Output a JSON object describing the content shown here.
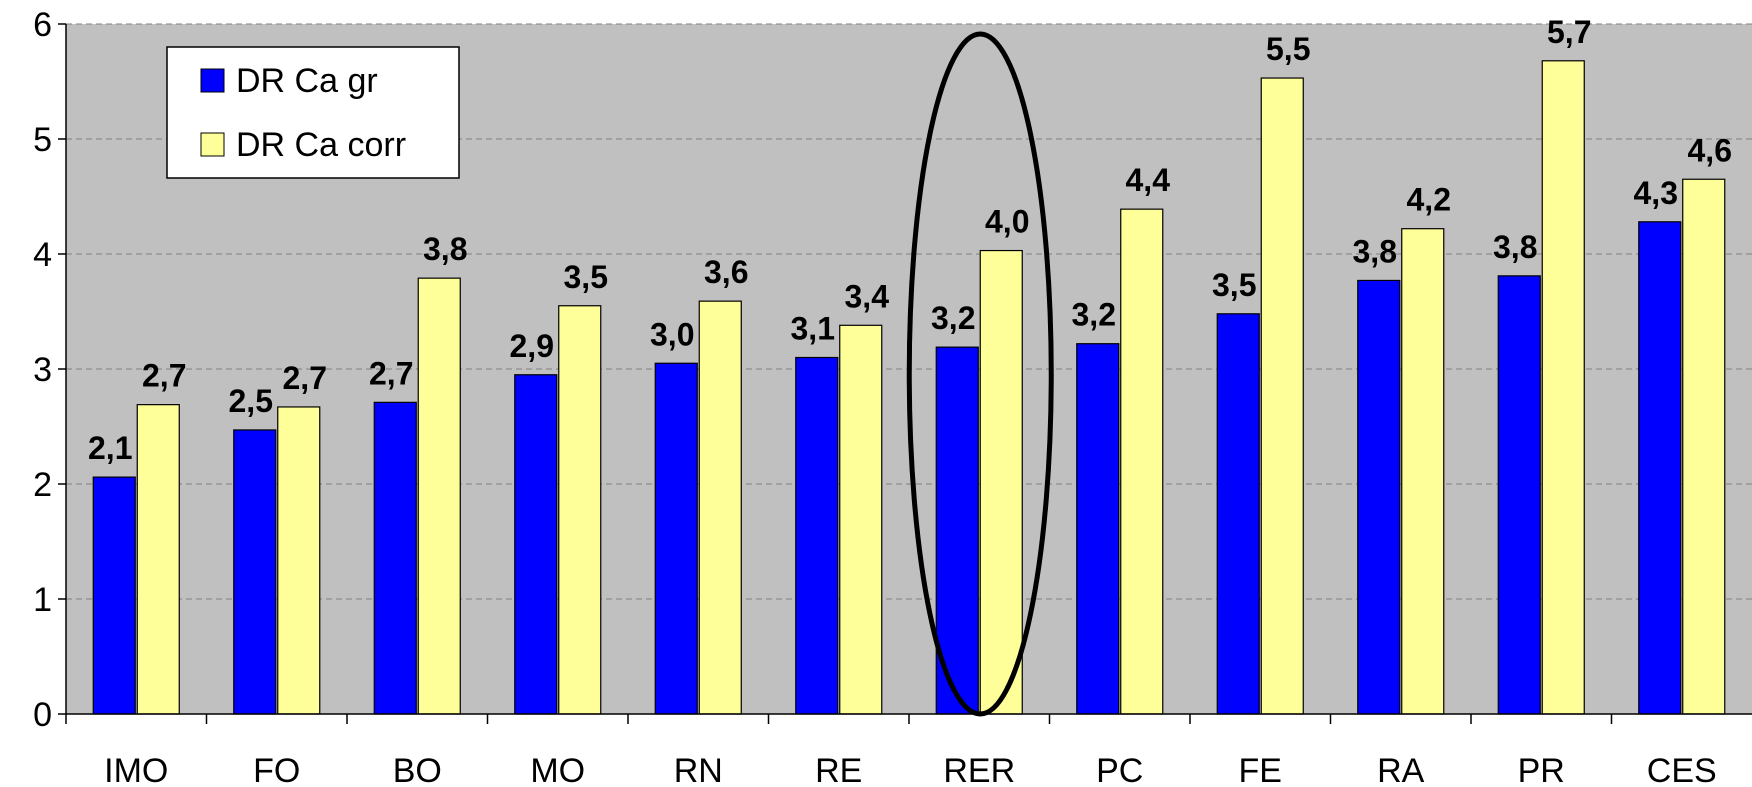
{
  "chart_data": {
    "type": "bar",
    "categories": [
      "IMO",
      "FO",
      "BO",
      "MO",
      "RN",
      "RE",
      "RER",
      "PC",
      "FE",
      "RA",
      "PR",
      "CES"
    ],
    "series": [
      {
        "name": "DR Ca gr",
        "color": "#0000ff",
        "values": [
          2.06,
          2.47,
          2.71,
          2.95,
          3.05,
          3.1,
          3.19,
          3.22,
          3.48,
          3.77,
          3.81,
          4.28
        ],
        "labels": [
          "2,1",
          "2,5",
          "2,7",
          "2,9",
          "3,0",
          "3,1",
          "3,2",
          "3,2",
          "3,5",
          "3,8",
          "3,8",
          "4,3"
        ]
      },
      {
        "name": "DR Ca corr",
        "color": "#ffff99",
        "values": [
          2.69,
          2.67,
          3.79,
          3.55,
          3.59,
          3.38,
          4.03,
          4.39,
          5.53,
          4.22,
          5.68,
          4.65
        ],
        "labels": [
          "2,7",
          "2,7",
          "3,8",
          "3,5",
          "3,6",
          "3,4",
          "4,0",
          "4,4",
          "5,5",
          "4,2",
          "5,7",
          "4,6"
        ]
      }
    ],
    "yticks": [
      "0",
      "1",
      "2",
      "3",
      "4",
      "5",
      "6"
    ],
    "ylim": [
      0,
      6
    ],
    "grid": true,
    "legend": "top-left",
    "highlight": "RER",
    "plot_background": "#c0c0c0"
  }
}
